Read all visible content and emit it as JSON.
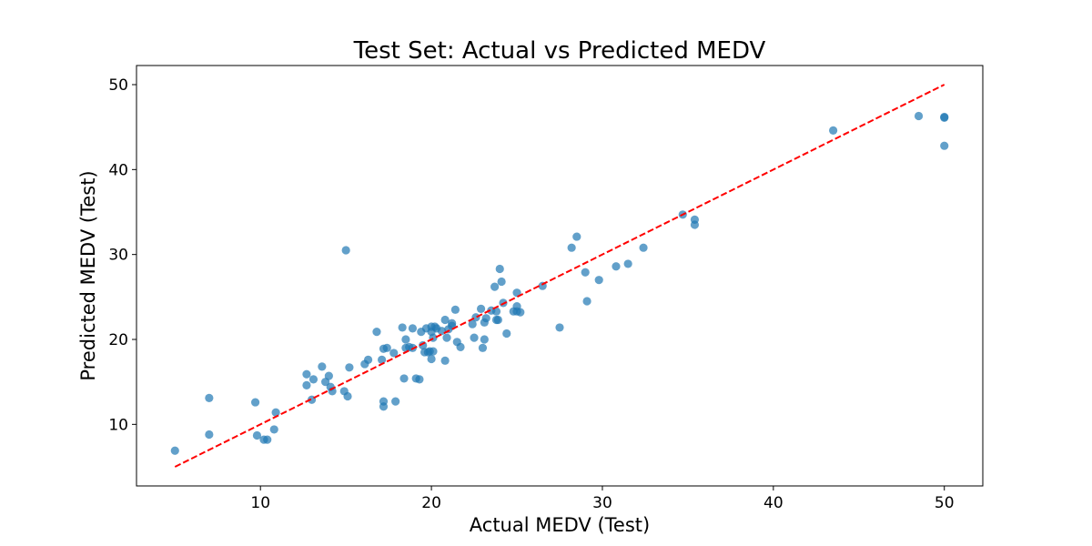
{
  "chart_data": {
    "type": "scatter",
    "title": "Test Set: Actual vs Predicted MEDV",
    "xlabel": "Actual MEDV (Test)",
    "ylabel": "Predicted MEDV (Test)",
    "xlim": [
      2.75,
      52.25
    ],
    "ylim": [
      2.75,
      52.25
    ],
    "xticks": [
      10,
      20,
      30,
      40,
      50
    ],
    "yticks": [
      10,
      20,
      30,
      40,
      50
    ],
    "grid": false,
    "colors": {
      "points": "#1f77b4",
      "reference_line": "#ff0000",
      "axes": "#000000",
      "background": "#ffffff"
    },
    "reference_line": {
      "x": [
        5,
        50
      ],
      "y": [
        5,
        50
      ],
      "style": "dashed"
    },
    "series": [
      {
        "x": [
          5.0,
          7.0,
          7.0,
          9.7,
          9.8,
          10.2,
          10.4,
          10.8,
          10.9,
          12.7,
          12.7,
          13.0,
          13.1,
          13.6,
          13.8,
          14.0,
          14.1,
          14.2,
          14.9,
          15.0,
          15.1,
          15.2,
          16.1,
          16.3,
          16.8,
          17.1,
          17.2,
          17.2,
          17.2,
          17.4,
          17.8,
          17.9,
          18.3,
          18.4,
          18.5,
          18.5,
          18.7,
          18.9,
          18.9,
          19.1,
          19.3,
          19.4,
          19.5,
          19.6,
          19.7,
          19.8,
          19.9,
          20.0,
          20.0,
          20.0,
          20.1,
          20.1,
          20.2,
          20.3,
          20.6,
          20.8,
          20.8,
          20.9,
          21.0,
          21.2,
          21.2,
          21.4,
          21.5,
          21.7,
          22.4,
          22.5,
          22.6,
          22.9,
          23.0,
          23.1,
          23.1,
          23.2,
          23.5,
          23.7,
          23.8,
          23.8,
          23.9,
          24.0,
          24.1,
          24.2,
          24.4,
          24.8,
          25.0,
          25.0,
          25.0,
          25.2,
          26.5,
          27.5,
          28.2,
          28.5,
          29.0,
          29.1,
          29.8,
          30.8,
          31.5,
          32.4,
          34.7,
          35.4,
          35.4,
          43.5,
          48.5,
          50.0,
          50.0,
          50.0
        ],
        "y": [
          6.9,
          8.8,
          13.1,
          12.6,
          8.7,
          8.2,
          8.2,
          9.4,
          11.4,
          15.9,
          14.6,
          12.9,
          15.3,
          16.8,
          15.0,
          15.7,
          14.4,
          13.9,
          13.9,
          30.5,
          13.3,
          16.7,
          17.1,
          17.6,
          20.9,
          17.6,
          12.7,
          12.1,
          18.9,
          19.0,
          18.4,
          12.7,
          21.4,
          15.4,
          20.0,
          19.0,
          19.1,
          21.3,
          19.0,
          15.4,
          15.3,
          20.9,
          19.3,
          18.5,
          21.3,
          18.5,
          18.6,
          21.5,
          20.9,
          17.7,
          20.2,
          18.6,
          21.5,
          21.3,
          21.0,
          22.3,
          17.5,
          20.2,
          21.2,
          21.9,
          21.6,
          23.5,
          19.7,
          19.1,
          21.8,
          20.2,
          22.6,
          23.6,
          19.0,
          20.0,
          22.0,
          22.5,
          23.4,
          26.2,
          23.3,
          22.3,
          22.3,
          28.3,
          26.8,
          24.3,
          20.7,
          23.3,
          25.5,
          23.9,
          23.3,
          23.2,
          26.3,
          21.4,
          30.8,
          32.1,
          27.9,
          24.5,
          27.0,
          28.6,
          28.9,
          30.8,
          34.7,
          34.1,
          33.5,
          44.6,
          46.3,
          46.2,
          46.1,
          42.8
        ]
      }
    ]
  }
}
